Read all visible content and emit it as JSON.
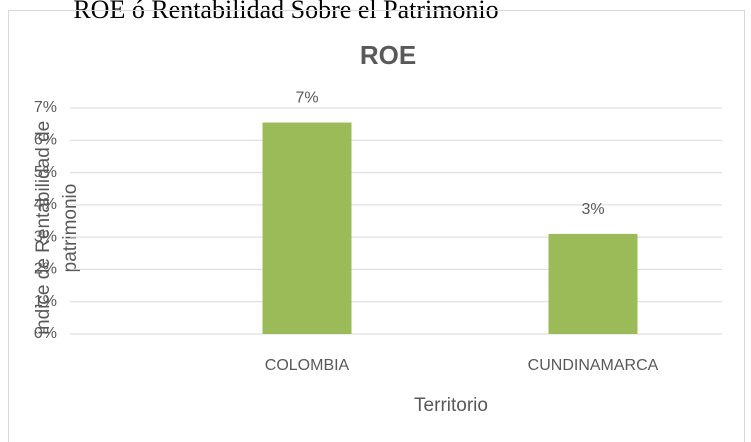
{
  "header": {
    "title": "ROE ó Rentabilidad Sobre el Patrimonio"
  },
  "chart_data": {
    "type": "bar",
    "title": "ROE",
    "x_label": "Territorio",
    "y_label": [
      "índice de Rentabilidad de",
      "patrimonio"
    ],
    "categories": [
      "COLOMBIA",
      "CUNDINAMARCA"
    ],
    "values": [
      6.55,
      3.1
    ],
    "value_labels": [
      "7%",
      "3%"
    ],
    "color": "#9bbb59",
    "ylim": [
      0,
      7
    ],
    "yticks": [
      {
        "value": 0,
        "label": "0%"
      },
      {
        "value": 1,
        "label": "1%"
      },
      {
        "value": 2,
        "label": "2%"
      },
      {
        "value": 3,
        "label": "3%"
      },
      {
        "value": 4,
        "label": "4%"
      },
      {
        "value": 5,
        "label": "5%"
      },
      {
        "value": 6,
        "label": "6%"
      },
      {
        "value": 7,
        "label": "7%"
      }
    ],
    "grid": true
  }
}
